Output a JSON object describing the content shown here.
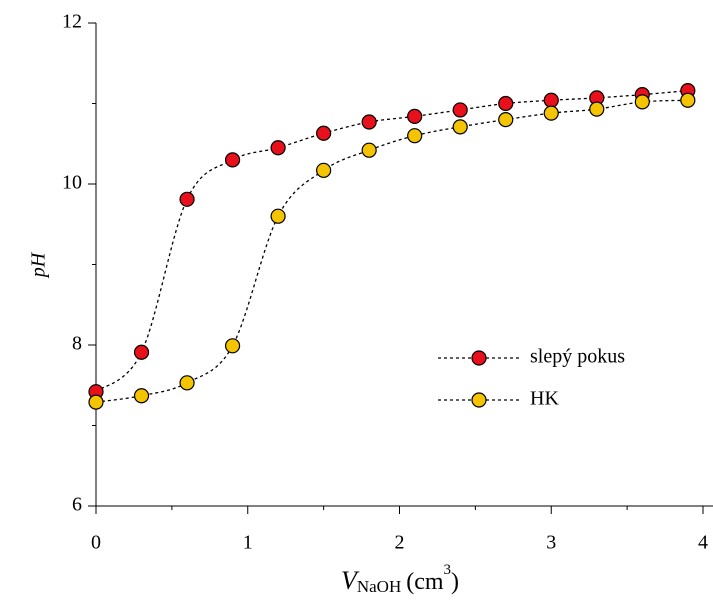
{
  "chart_data": {
    "type": "line",
    "x_label": {
      "symbol": "V",
      "subscript": "NaOH",
      "unit_open": "(cm",
      "unit_power": "3",
      "unit_close": ")"
    },
    "y_label": "pH",
    "x": [
      0,
      0.3,
      0.6,
      0.9,
      1.2,
      1.5,
      1.8,
      2.1,
      2.4,
      2.7,
      3.0,
      3.3,
      3.6,
      3.9
    ],
    "series": [
      {
        "name": "slepý pokus",
        "color": "#e8101a",
        "values": [
          7.42,
          7.91,
          9.81,
          10.3,
          10.45,
          10.63,
          10.77,
          10.84,
          10.92,
          11.0,
          11.04,
          11.07,
          11.11,
          11.16
        ]
      },
      {
        "name": "HK",
        "color": "#f5c400",
        "values": [
          7.29,
          7.37,
          7.53,
          7.99,
          9.6,
          10.17,
          10.42,
          10.6,
          10.71,
          10.8,
          10.88,
          10.93,
          11.02,
          11.04
        ]
      }
    ],
    "xlim": [
      0,
      4
    ],
    "ylim": [
      6,
      12
    ],
    "xticks": [
      0,
      1,
      2,
      3,
      4
    ],
    "yticks": [
      6,
      8,
      10,
      12
    ],
    "xminor": [
      0.5,
      1.5,
      2.5,
      3.5
    ],
    "yminor": [
      7,
      9,
      11
    ],
    "line_style": "dotted",
    "marker": "circle"
  }
}
